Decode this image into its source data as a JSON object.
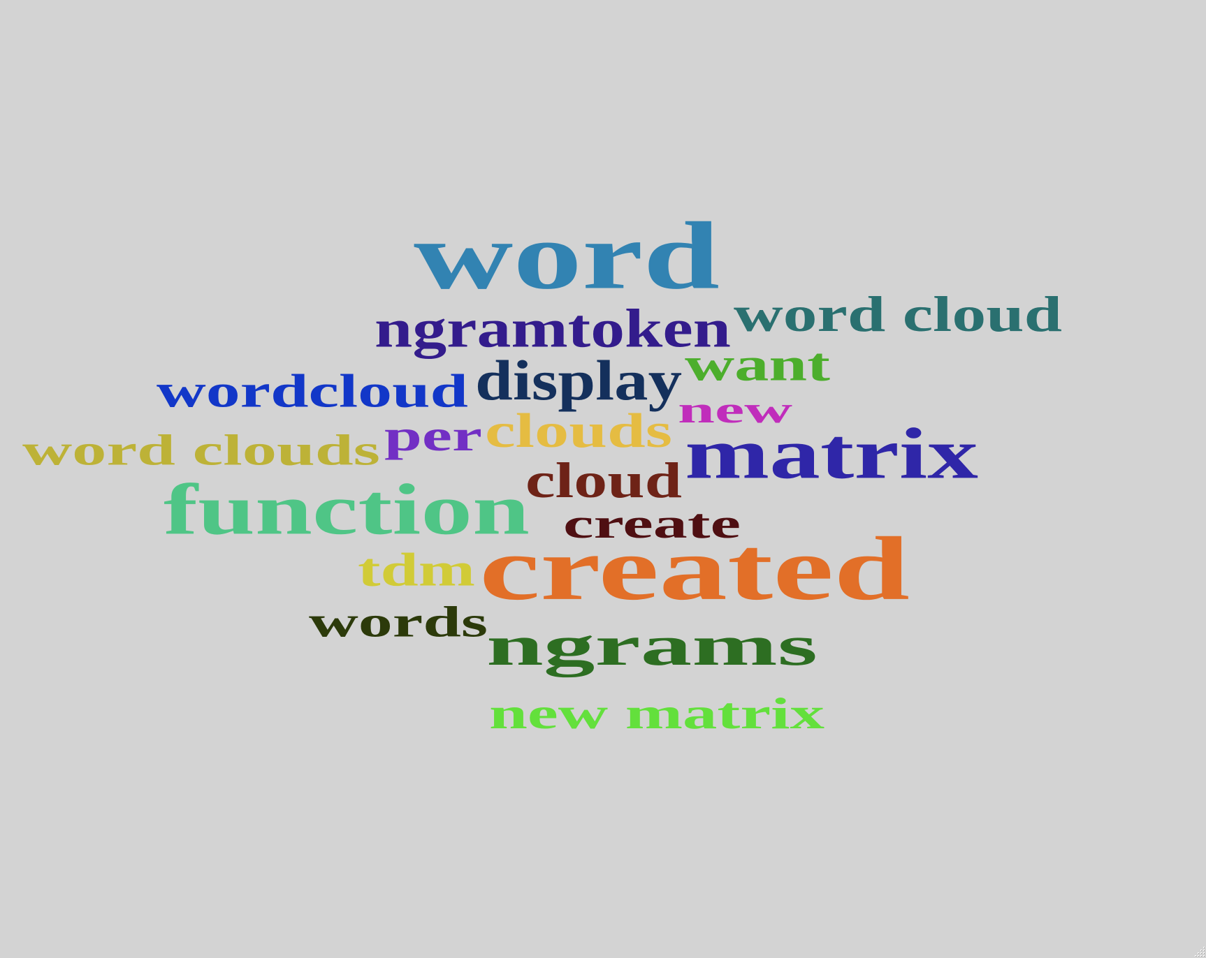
{
  "chart_data": {
    "type": "wordcloud",
    "background": "#d3d3d3",
    "words": [
      {
        "text": "word",
        "color": "#3283b2"
      },
      {
        "text": "ngramtoken",
        "color": "#331c8c"
      },
      {
        "text": "word cloud",
        "color": "#2a7070"
      },
      {
        "text": "wordcloud",
        "color": "#1237c8"
      },
      {
        "text": "display",
        "color": "#14305c"
      },
      {
        "text": "want",
        "color": "#4cae2c"
      },
      {
        "text": "new",
        "color": "#c02dbb"
      },
      {
        "text": "word clouds",
        "color": "#bdb237"
      },
      {
        "text": "per",
        "color": "#722fc4"
      },
      {
        "text": "clouds",
        "color": "#e5bc42"
      },
      {
        "text": "matrix",
        "color": "#2f26a8"
      },
      {
        "text": "cloud",
        "color": "#6e2317"
      },
      {
        "text": "function",
        "color": "#4fc586"
      },
      {
        "text": "create",
        "color": "#4f0f12"
      },
      {
        "text": "tdm",
        "color": "#d1cb37"
      },
      {
        "text": "created",
        "color": "#e26f28"
      },
      {
        "text": "words",
        "color": "#2c3a0a"
      },
      {
        "text": "ngrams",
        "color": "#2d6e22"
      },
      {
        "text": "new matrix",
        "color": "#63e03c"
      }
    ]
  }
}
